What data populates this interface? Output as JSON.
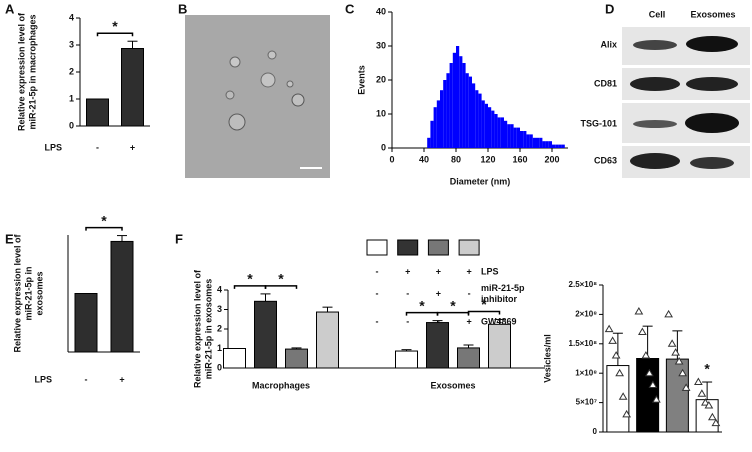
{
  "chart_data": [
    {
      "type": "bar",
      "panel": "A",
      "ylabel": [
        "Relative expression level of",
        "miR-21-5p in macrophages"
      ],
      "row_label": "LPS",
      "categories": [
        "-",
        "+"
      ],
      "values": [
        1,
        2.87
      ],
      "errors": [
        0,
        0.27
      ],
      "color": "#2e2e2e",
      "ylim": [
        0,
        4
      ],
      "yticks": [
        0,
        1,
        2,
        3,
        4
      ],
      "significance": [
        {
          "from": 0,
          "to": 1,
          "label": "*"
        }
      ]
    },
    {
      "type": "histogram",
      "panel": "C",
      "xlabel": "Diameter (nm)",
      "ylabel": [
        "Events"
      ],
      "color": "#0000ff",
      "bins": [
        44,
        48,
        52,
        56,
        60,
        64,
        68,
        72,
        76,
        80,
        84,
        88,
        92,
        96,
        100,
        104,
        108,
        112,
        116,
        120,
        124,
        128,
        132,
        136,
        140,
        144,
        148,
        152,
        156,
        160,
        164,
        168,
        172,
        176,
        180,
        184,
        188,
        192,
        196,
        200,
        204,
        208,
        212,
        216
      ],
      "values": [
        3,
        8,
        12,
        14,
        17,
        20,
        22,
        25,
        28,
        30,
        27,
        25,
        22,
        21,
        19,
        17,
        16,
        14,
        13,
        12,
        11,
        10,
        9,
        9,
        8,
        7,
        7,
        6,
        6,
        5,
        5,
        4,
        4,
        3,
        3,
        3,
        2,
        2,
        2,
        1,
        1,
        1,
        1
      ],
      "xlim": [
        0,
        220
      ],
      "xticks": [
        0,
        40,
        80,
        120,
        160,
        200
      ],
      "ylim": [
        0,
        40
      ],
      "yticks": [
        0,
        10,
        20,
        30,
        40
      ]
    },
    {
      "type": "bar",
      "panel": "E",
      "ylabel": [
        "Relative expression level of",
        "miR-21-5p in",
        "exosomes"
      ],
      "row_label": "LPS",
      "categories": [
        "-",
        "+"
      ],
      "values": [
        1,
        1.89
      ],
      "errors": [
        0,
        0.1
      ],
      "color": "#2e2e2e",
      "ylim": [
        0,
        2
      ],
      "significance": [
        {
          "from": 0,
          "to": 1,
          "label": "*"
        }
      ]
    },
    {
      "type": "bar",
      "panel": "F",
      "ylabel": [
        "Relative expression level of",
        "miR-21-5p in exosomes"
      ],
      "categories": [
        "Macrophages",
        "Exosomes"
      ],
      "series": [
        {
          "color": "#ffffff",
          "values": [
            1,
            0.87
          ],
          "errors": [
            0,
            0.07
          ]
        },
        {
          "color": "#333333",
          "values": [
            3.42,
            2.33
          ],
          "errors": [
            0.38,
            0.1
          ]
        },
        {
          "color": "#777777",
          "values": [
            0.97,
            1.03
          ],
          "errors": [
            0.06,
            0.15
          ]
        },
        {
          "color": "#cccccc",
          "values": [
            2.87,
            2.24
          ],
          "errors": [
            0.25,
            0.25
          ]
        }
      ],
      "conditions": [
        {
          "label": [
            "LPS"
          ],
          "marks": [
            "-",
            "+",
            "+",
            "+"
          ]
        },
        {
          "label": [
            "miR-21-5p",
            "inhibitor"
          ],
          "marks": [
            "-",
            "-",
            "+",
            "-"
          ]
        },
        {
          "label": [
            "GW4869"
          ],
          "marks": [
            "-",
            "-",
            "-",
            "+"
          ]
        }
      ],
      "ylim": [
        0,
        4
      ],
      "yticks": [
        0,
        1,
        2,
        3,
        4
      ],
      "significance": [
        {
          "category": 0,
          "from": 0,
          "to": 1,
          "label": "*"
        },
        {
          "category": 0,
          "from": 1,
          "to": 2,
          "label": "*"
        },
        {
          "category": 1,
          "from": 0,
          "to": 1,
          "label": "*"
        },
        {
          "category": 1,
          "from": 1,
          "to": 2,
          "label": "*"
        },
        {
          "category": 1,
          "from": 2,
          "to": 3,
          "label": "*"
        }
      ]
    },
    {
      "type": "bar",
      "ylabel": [
        "Vesicles/ml"
      ],
      "categories": [
        null,
        null,
        null,
        null
      ],
      "values": [
        113000000,
        125000000,
        124000000,
        55000000
      ],
      "errors": [
        55000000,
        55000000,
        48000000,
        30000000
      ],
      "colors": [
        "#ffffff",
        "#000000",
        "#808080",
        "#ffffff"
      ],
      "points": [
        [
          175000000,
          155000000,
          130000000,
          100000000,
          60000000,
          30000000
        ],
        [
          205000000,
          170000000,
          130000000,
          100000000,
          80000000,
          55000000
        ],
        [
          200000000,
          150000000,
          135000000,
          120000000,
          100000000,
          75000000
        ],
        [
          85000000,
          65000000,
          50000000,
          45000000,
          25000000,
          15000000
        ]
      ],
      "ylim": [
        0,
        250000000
      ],
      "yticks": [
        0,
        {
          "value": 50000000,
          "label": "5×10⁷"
        },
        {
          "value": 100000000,
          "label": "1×10⁸"
        },
        {
          "value": 150000000,
          "label": "1.5×10⁸"
        },
        {
          "value": 200000000,
          "label": "2×10⁸"
        },
        {
          "value": 250000000,
          "label": "2.5×10⁸"
        }
      ],
      "significance": [
        {
          "bar": 3,
          "label": "*"
        }
      ]
    }
  ],
  "images": [
    {
      "panel": "B"
    },
    {
      "panel": "D",
      "columns": [
        "Cell",
        "Exosomes"
      ],
      "rows": [
        "Alix",
        "CD81",
        "TSG-101",
        "CD63"
      ]
    }
  ]
}
